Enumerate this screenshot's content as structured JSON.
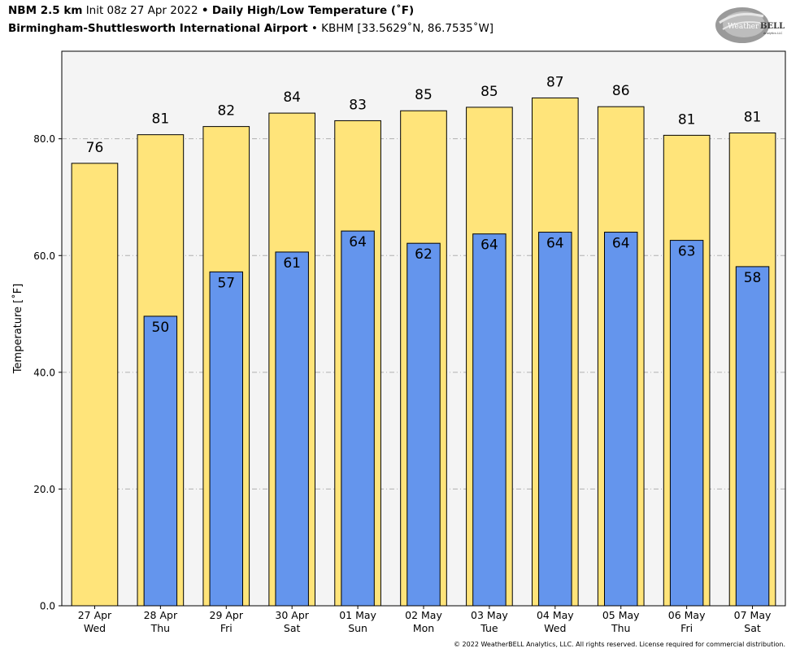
{
  "header": {
    "line1_model": "NBM 2.5 km",
    "line1_init": "Init 08z 27 Apr 2022",
    "line1_sep": "•",
    "line1_title": "Daily High/Low Temperature (˚F)",
    "line2_station": "Birmingham-Shuttlesworth International Airport",
    "line2_sep": "•",
    "line2_id": "KBHM [33.5629˚N, 86.7535˚W]"
  },
  "logo": {
    "text_weather": "Weather",
    "text_bell": "BELL",
    "sub": "Analytics LLC"
  },
  "copyright": "© 2022 WeatherBELL Analytics, LLC. All rights reserved. License required for commercial distribution.",
  "chart_data": {
    "type": "bar",
    "ylabel": "Temperature [˚F]",
    "ylim": [
      0,
      95
    ],
    "yticks": [
      0,
      20,
      40,
      60,
      80
    ],
    "ytick_labels": [
      "0.0",
      "20.0",
      "40.0",
      "60.0",
      "80.0"
    ],
    "grid": "horizontal dashed",
    "categories": [
      [
        "27 Apr",
        "Wed"
      ],
      [
        "28 Apr",
        "Thu"
      ],
      [
        "29 Apr",
        "Fri"
      ],
      [
        "30 Apr",
        "Sat"
      ],
      [
        "01 May",
        "Sun"
      ],
      [
        "02 May",
        "Mon"
      ],
      [
        "03 May",
        "Tue"
      ],
      [
        "04 May",
        "Wed"
      ],
      [
        "05 May",
        "Thu"
      ],
      [
        "06 May",
        "Fri"
      ],
      [
        "07 May",
        "Sat"
      ]
    ],
    "series": [
      {
        "values": [
          75.8,
          80.7,
          82.1,
          84.4,
          83.1,
          84.8,
          85.4,
          87.0,
          85.5,
          80.6,
          81.0
        ],
        "labels": [
          "76",
          "81",
          "82",
          "84",
          "83",
          "85",
          "85",
          "87",
          "86",
          "81",
          "81"
        ],
        "color": "#FFE47A"
      },
      {
        "values": [
          null,
          49.6,
          57.2,
          60.6,
          64.2,
          62.1,
          63.7,
          64.0,
          64.0,
          62.6,
          58.1
        ],
        "labels": [
          "",
          "50",
          "57",
          "61",
          "64",
          "62",
          "64",
          "64",
          "64",
          "63",
          "58"
        ],
        "color": "#6495ED"
      }
    ]
  }
}
